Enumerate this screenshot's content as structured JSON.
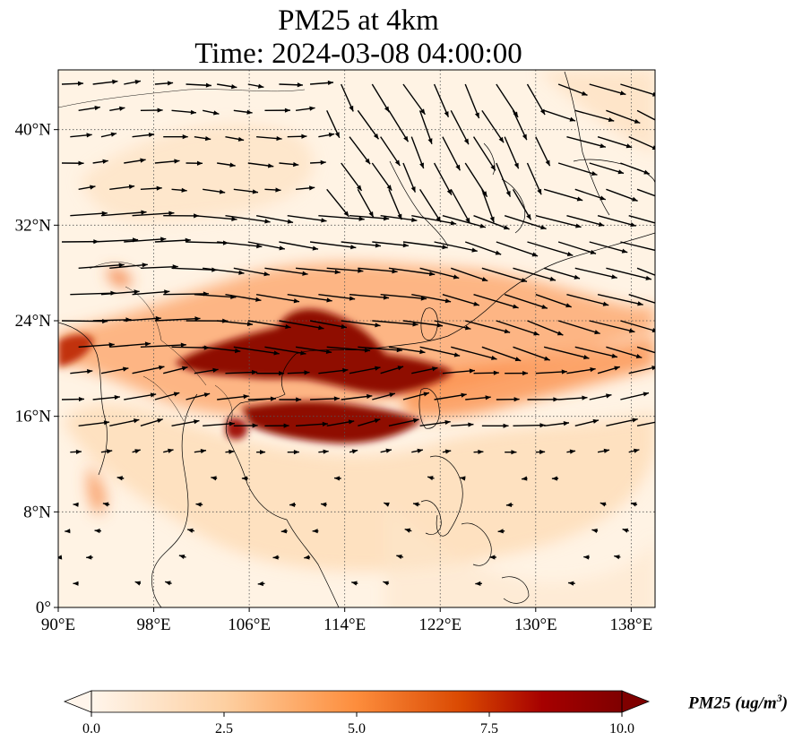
{
  "title_line1": "PM25 at 4km",
  "title_line2": "Time: 2024-03-08 04:00:00",
  "map": {
    "lon_range": [
      90,
      140
    ],
    "lat_range": [
      0,
      45
    ],
    "lon_ticks": [
      {
        "value": 90,
        "label": "90°E"
      },
      {
        "value": 98,
        "label": "98°E"
      },
      {
        "value": 106,
        "label": "106°E"
      },
      {
        "value": 114,
        "label": "114°E"
      },
      {
        "value": 122,
        "label": "122°E"
      },
      {
        "value": 130,
        "label": "130°E"
      },
      {
        "value": 138,
        "label": "138°E"
      }
    ],
    "lat_ticks": [
      {
        "value": 0,
        "label": "0°"
      },
      {
        "value": 8,
        "label": "8°N"
      },
      {
        "value": 16,
        "label": "16°N"
      },
      {
        "value": 24,
        "label": "24°N"
      },
      {
        "value": 32,
        "label": "32°N"
      },
      {
        "value": 40,
        "label": "40°N"
      }
    ],
    "gridlines": "dotted"
  },
  "colorbar": {
    "min": 0,
    "max": 10,
    "ticks": [
      "0.0",
      "2.5",
      "5.0",
      "7.5",
      "10.0"
    ],
    "label_prefix": "PM25 (ug/m",
    "label_sup": "3",
    "label_suffix": ")",
    "colors": [
      "#fff5eb",
      "#fdd0a2",
      "#fd8d3c",
      "#d94801",
      "#a60000",
      "#7f0000"
    ],
    "extend": "both"
  }
}
